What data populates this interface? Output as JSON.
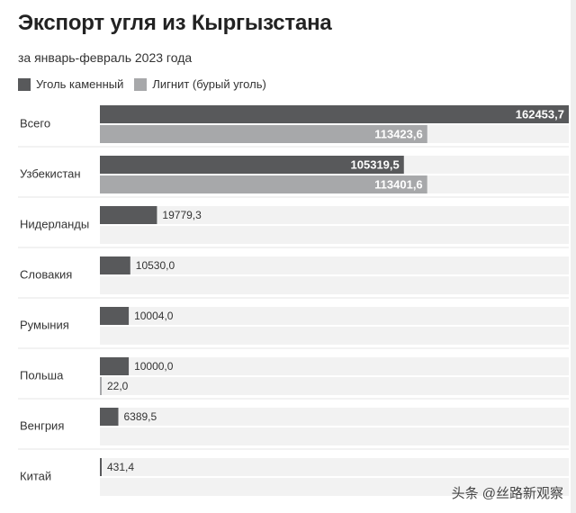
{
  "chart_data": {
    "type": "bar",
    "orientation": "horizontal",
    "title": "Экспорт угля из Кыргызстана",
    "subtitle": "за январь-февраль 2023 года",
    "categories": [
      "Всего",
      "Узбекистан",
      "Нидерланды",
      "Словакия",
      "Румыния",
      "Польша",
      "Венгрия",
      "Китай"
    ],
    "series": [
      {
        "name": "Уголь каменный",
        "color": "#58595b",
        "values": [
          162453.7,
          105319.5,
          19779.3,
          10530.0,
          10004.0,
          10000.0,
          6389.5,
          431.4
        ],
        "labels": [
          "162453,7",
          "105319,5",
          "19779,3",
          "10530,0",
          "10004,0",
          "10000,0",
          "6389,5",
          "431,4"
        ]
      },
      {
        "name": "Лигнит (бурый уголь)",
        "color": "#a7a8aa",
        "values": [
          113423.6,
          113401.6,
          null,
          null,
          null,
          22.0,
          null,
          null
        ],
        "labels": [
          "113423,6",
          "113401,6",
          "",
          "",
          "",
          "22,0",
          "",
          ""
        ]
      }
    ],
    "xlim": [
      0,
      162453.7
    ],
    "background_band_color": "#f2f2f2"
  },
  "watermark": "头条 @丝路新观察"
}
